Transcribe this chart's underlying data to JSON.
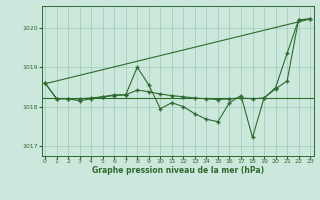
{
  "background_color": "#cce8dc",
  "grid_color": "#99ccb8",
  "line_color": "#2d6a2d",
  "text_color": "#2d6a2d",
  "xlabel": "Graphe pression niveau de la mer (hPa)",
  "ylim": [
    1016.75,
    1020.55
  ],
  "yticks": [
    1017,
    1018,
    1019,
    1020
  ],
  "xticks": [
    0,
    1,
    2,
    3,
    4,
    5,
    6,
    7,
    8,
    9,
    10,
    11,
    12,
    13,
    14,
    15,
    16,
    17,
    18,
    19,
    20,
    21,
    22,
    23
  ],
  "xlim": [
    -0.3,
    23.3
  ],
  "series1": [
    1018.6,
    1018.2,
    1018.2,
    1018.15,
    1018.2,
    1018.25,
    1018.3,
    1018.3,
    1019.0,
    1018.55,
    1017.95,
    1018.1,
    1018.0,
    1017.82,
    1017.68,
    1017.62,
    1018.1,
    1018.28,
    1017.22,
    1018.22,
    1018.48,
    1019.35,
    1020.2,
    1020.22
  ],
  "series2_x": [
    0,
    23
  ],
  "series2_y": [
    1018.58,
    1020.22
  ],
  "series3": [
    1018.6,
    1018.2,
    1018.2,
    1018.2,
    1018.22,
    1018.25,
    1018.28,
    1018.3,
    1018.42,
    1018.38,
    1018.32,
    1018.28,
    1018.25,
    1018.22,
    1018.2,
    1018.18,
    1018.2,
    1018.22,
    1018.2,
    1018.22,
    1018.45,
    1018.65,
    1020.2,
    1020.22
  ],
  "flat_y": 1018.22,
  "linewidth": 0.8,
  "markersize": 3,
  "marker": "+"
}
